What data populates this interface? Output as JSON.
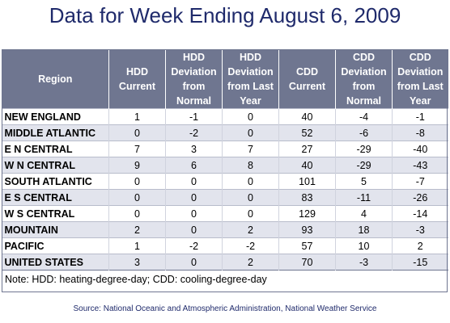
{
  "title": "Data for Week Ending August 6, 2009",
  "columns": [
    "Region",
    "HDD Current",
    "HDD Deviation from Normal",
    "HDD Deviation from Last Year",
    "CDD Current",
    "CDD Deviation from Normal",
    "CDD Deviation from Last Year"
  ],
  "rows": [
    [
      "NEW ENGLAND",
      "1",
      "-1",
      "0",
      "40",
      "-4",
      "-1"
    ],
    [
      "MIDDLE ATLANTIC",
      "0",
      "-2",
      "0",
      "52",
      "-6",
      "-8"
    ],
    [
      "E N CENTRAL",
      "7",
      "3",
      "7",
      "27",
      "-29",
      "-40"
    ],
    [
      "W N CENTRAL",
      "9",
      "6",
      "8",
      "40",
      "-29",
      "-43"
    ],
    [
      "SOUTH ATLANTIC",
      "0",
      "0",
      "0",
      "101",
      "5",
      "-7"
    ],
    [
      "E S CENTRAL",
      "0",
      "0",
      "0",
      "83",
      "-11",
      "-26"
    ],
    [
      "W S CENTRAL",
      "0",
      "0",
      "0",
      "129",
      "4",
      "-14"
    ],
    [
      "MOUNTAIN",
      "2",
      "0",
      "2",
      "93",
      "18",
      "-3"
    ],
    [
      "PACIFIC",
      "1",
      "-2",
      "-2",
      "57",
      "10",
      "2"
    ],
    [
      "UNITED STATES",
      "3",
      "0",
      "2",
      "70",
      "-3",
      "-15"
    ]
  ],
  "note": "Note: HDD: heating-degree-day; CDD: cooling-degree-day",
  "source": "Source:  National Oceanic and Atmospheric Administration, National Weather Service",
  "colors": {
    "header_bg": "#6f7690",
    "stripe": "#e2e4ed",
    "title": "#1f2a6b"
  }
}
